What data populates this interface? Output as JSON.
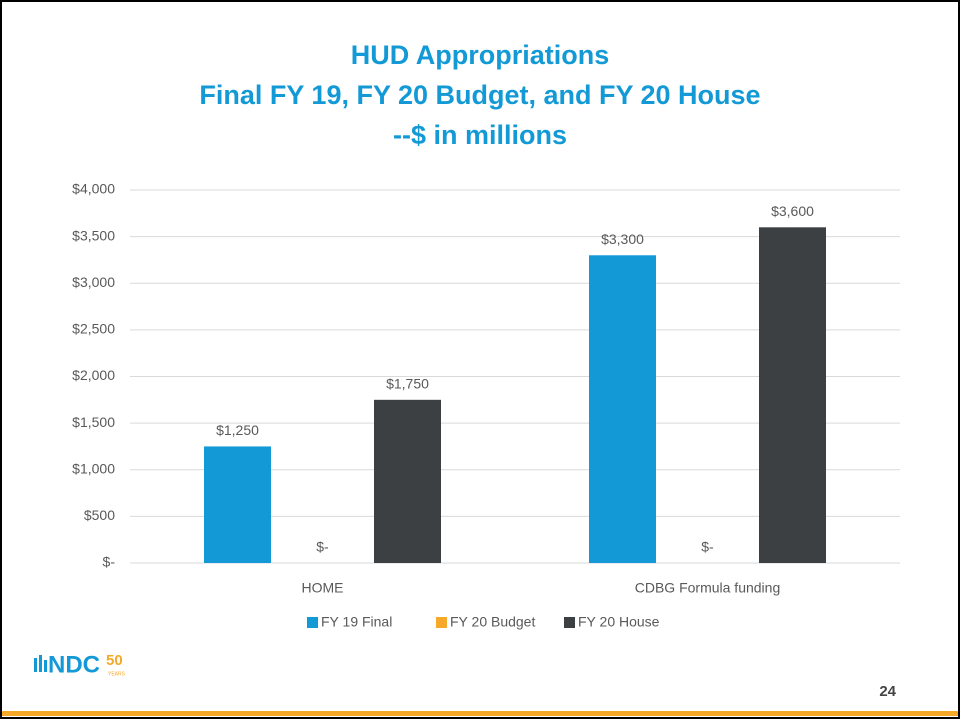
{
  "chart_data": {
    "type": "bar",
    "title": [
      "HUD Appropriations",
      "Final FY 19, FY 20 Budget, and FY 20 House",
      "--$ in millions"
    ],
    "categories": [
      "HOME",
      "CDBG Formula funding"
    ],
    "series": [
      {
        "name": "FY 19 Final",
        "color": "#139ad6",
        "values": [
          1250,
          3300
        ],
        "value_labels": [
          "$1,250",
          "$3,300"
        ]
      },
      {
        "name": "FY 20 Budget",
        "color": "#f6a828",
        "values": [
          0,
          0
        ],
        "value_labels": [
          "$-",
          "$-"
        ]
      },
      {
        "name": "FY 20 House",
        "color": "#3d4042",
        "values": [
          1750,
          3600
        ],
        "value_labels": [
          "$1,750",
          "$3,600"
        ]
      }
    ],
    "ylim": [
      0,
      4000
    ],
    "yticks": [
      {
        "value": 0,
        "label": "$-"
      },
      {
        "value": 500,
        "label": "$500"
      },
      {
        "value": 1000,
        "label": "$1,000"
      },
      {
        "value": 1500,
        "label": "$1,500"
      },
      {
        "value": 2000,
        "label": "$2,000"
      },
      {
        "value": 2500,
        "label": "$2,500"
      },
      {
        "value": 3000,
        "label": "$3,000"
      },
      {
        "value": 3500,
        "label": "$3,500"
      },
      {
        "value": 4000,
        "label": "$4,000"
      }
    ],
    "grid": true,
    "legend": "bottom"
  },
  "logo": {
    "text": "NDC",
    "number": "50",
    "sub": "YEARS"
  },
  "page_number": "24"
}
